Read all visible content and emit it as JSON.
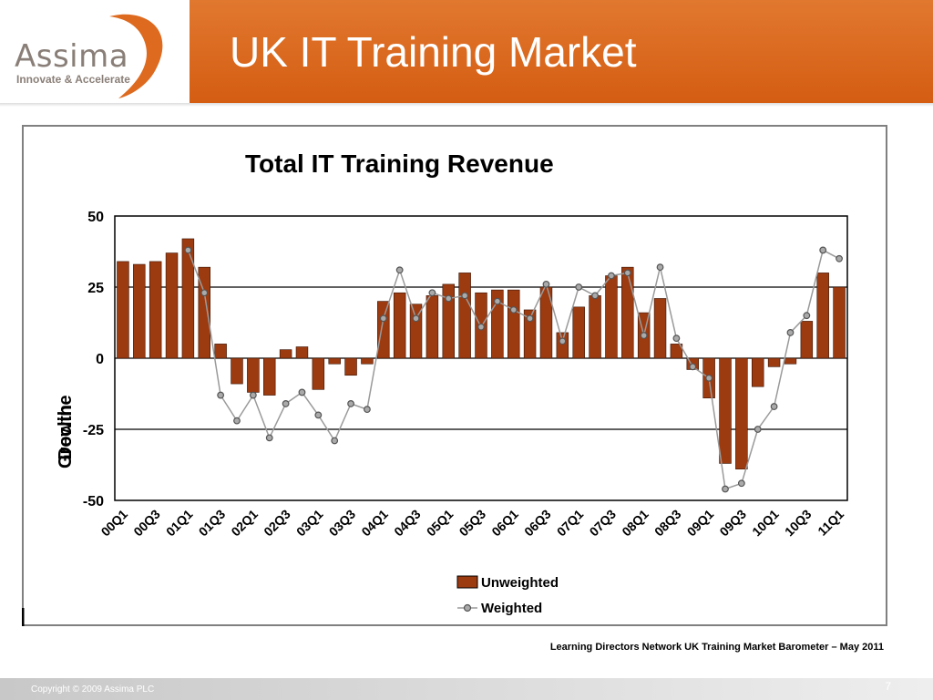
{
  "logo": {
    "name": "Assima",
    "tagline": "Innovate & Accelerate"
  },
  "slide": {
    "title": "UK IT Training Market",
    "source": "Learning Directors Network UK Training Market Barometer – May 2011",
    "copyright": "Copyright © 2009 Assima PLC",
    "page_number": "7"
  },
  "colors": {
    "accent": "#dd6a1f",
    "bar": "#9c3a10",
    "line": "#9a9a9a",
    "marker": "#777777"
  },
  "chart_data": {
    "type": "bar",
    "title": "Total IT Training Revenue",
    "ylabel_top": "Growth",
    "ylabel_bottom": "Decline",
    "ylim": [
      -50,
      50
    ],
    "yticks": [
      "50",
      "25",
      "0",
      "-25",
      "-50"
    ],
    "categories": [
      "00Q1",
      "00Q2",
      "00Q3",
      "00Q4",
      "01Q1",
      "01Q2",
      "01Q3",
      "01Q4",
      "02Q1",
      "02Q2",
      "02Q3",
      "02Q4",
      "03Q1",
      "03Q2",
      "03Q3",
      "03Q4",
      "04Q1",
      "04Q2",
      "04Q3",
      "04Q4",
      "05Q1",
      "05Q2",
      "05Q3",
      "05Q4",
      "06Q1",
      "06Q2",
      "06Q3",
      "06Q4",
      "07Q1",
      "07Q2",
      "07Q3",
      "07Q4",
      "08Q1",
      "08Q2",
      "08Q3",
      "08Q4",
      "09Q1",
      "09Q2",
      "09Q3",
      "09Q4",
      "10Q1",
      "10Q2",
      "10Q3",
      "10Q4",
      "11Q1"
    ],
    "tick_labels": [
      "00Q1",
      "00Q3",
      "01Q1",
      "01Q3",
      "02Q1",
      "02Q3",
      "03Q1",
      "03Q3",
      "04Q1",
      "04Q3",
      "05Q1",
      "05Q3",
      "06Q1",
      "06Q3",
      "07Q1",
      "07Q3",
      "08Q1",
      "08Q3",
      "09Q1",
      "09Q3",
      "10Q1",
      "10Q3",
      "11Q1"
    ],
    "series": [
      {
        "name": "Unweighted",
        "type": "bar",
        "values": [
          34,
          33,
          34,
          37,
          42,
          32,
          5,
          -9,
          -12,
          -13,
          3,
          4,
          -11,
          -2,
          -6,
          -2,
          20,
          23,
          19,
          22,
          26,
          30,
          23,
          24,
          24,
          17,
          25,
          9,
          18,
          22,
          29,
          32,
          16,
          21,
          5,
          -4,
          -14,
          -37,
          -39,
          -10,
          -3,
          -2,
          13,
          30,
          25
        ]
      },
      {
        "name": "Weighted",
        "type": "line",
        "values": [
          null,
          null,
          null,
          null,
          38,
          23,
          -13,
          -22,
          -13,
          -28,
          -16,
          -12,
          -20,
          -29,
          -16,
          -18,
          14,
          31,
          14,
          23,
          21,
          22,
          11,
          20,
          17,
          14,
          26,
          6,
          25,
          22,
          29,
          30,
          8,
          32,
          7,
          -3,
          -7,
          -46,
          -44,
          -25,
          -17,
          9,
          15,
          38,
          35
        ]
      }
    ],
    "legend_position": "bottom",
    "grid": "horizontal lines at 25, 0, -25"
  }
}
